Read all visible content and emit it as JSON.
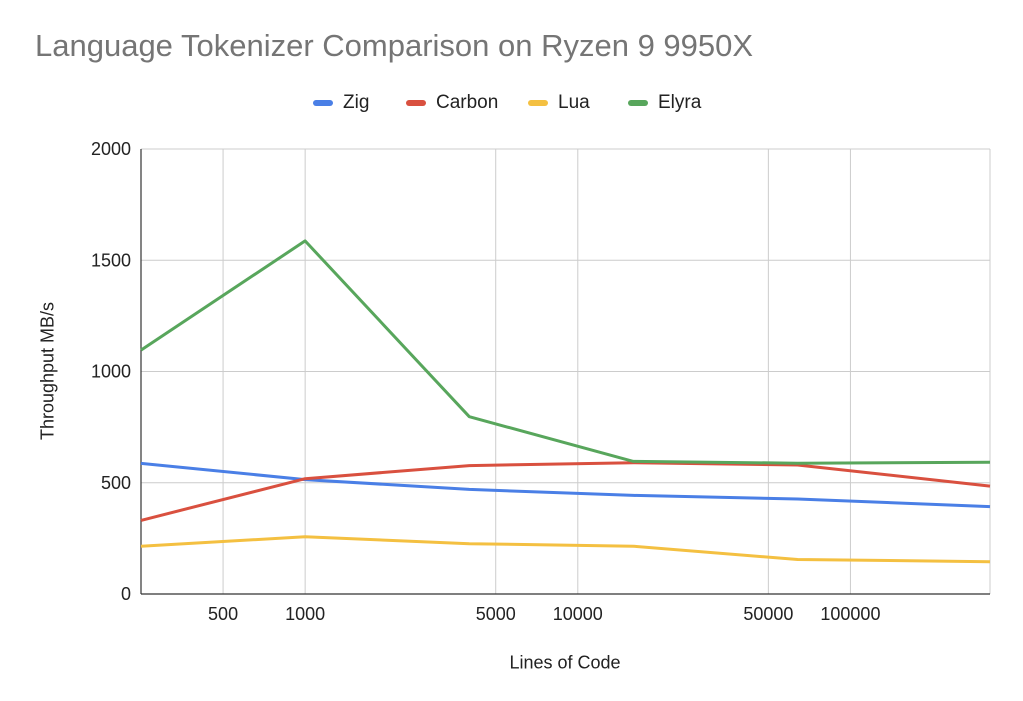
{
  "chart_data": {
    "type": "line",
    "title": "Language Tokenizer Comparison on Ryzen 9 9950X",
    "xlabel": "Lines of Code",
    "ylabel": "Throughput MB/s",
    "x_scale": "log",
    "xlim": [
      250,
      325000
    ],
    "ylim": [
      0,
      2000
    ],
    "y_ticks": [
      0,
      500,
      1000,
      1500,
      2000
    ],
    "x_ticks": [
      500,
      1000,
      5000,
      10000,
      50000,
      100000
    ],
    "legend_position": "top-center",
    "x": [
      250,
      1000,
      4000,
      16000,
      64000,
      325000
    ],
    "series": [
      {
        "name": "Zig",
        "color": "#4a7fe6",
        "values": [
          587,
          514,
          470,
          443,
          427,
          393
        ]
      },
      {
        "name": "Carbon",
        "color": "#d9503f",
        "values": [
          331,
          518,
          577,
          590,
          580,
          485
        ]
      },
      {
        "name": "Lua",
        "color": "#f4c041",
        "values": [
          215,
          257,
          226,
          215,
          155,
          145
        ]
      },
      {
        "name": "Elyra",
        "color": "#58a65c",
        "values": [
          1096,
          1587,
          797,
          596,
          588,
          592
        ]
      }
    ]
  }
}
